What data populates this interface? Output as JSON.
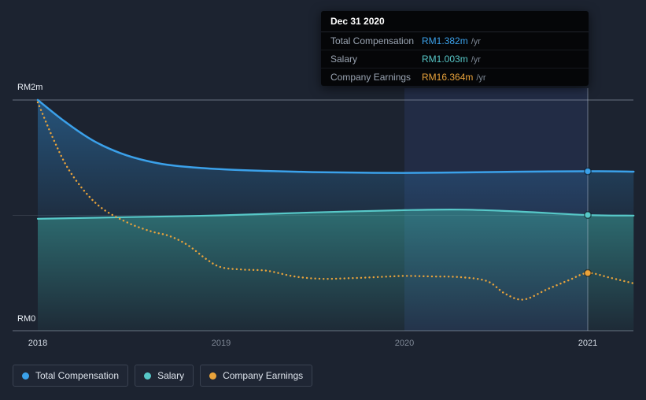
{
  "tooltip": {
    "date": "Dec 31 2020",
    "rows": [
      {
        "label": "Total Compensation",
        "value": "RM1.382m",
        "suffix": "/yr",
        "color": "#3ba1ea"
      },
      {
        "label": "Salary",
        "value": "RM1.003m",
        "suffix": "/yr",
        "color": "#57c8c8"
      },
      {
        "label": "Company Earnings",
        "value": "RM16.364m",
        "suffix": "/yr",
        "color": "#e9a33b"
      }
    ]
  },
  "axis": {
    "y_top_label": "RM2m",
    "y_bottom_label": "RM0",
    "x_labels": [
      "2018",
      "2019",
      "2020",
      "2021"
    ]
  },
  "legend": [
    {
      "label": "Total Compensation",
      "color": "#3ba1ea"
    },
    {
      "label": "Salary",
      "color": "#57c8c8"
    },
    {
      "label": "Company Earnings",
      "color": "#e9a33b"
    }
  ],
  "chart_data": {
    "type": "line",
    "x_ticks": [
      2018,
      2019,
      2020,
      2021
    ],
    "x_range": [
      2018,
      2021.3
    ],
    "y_axis": {
      "unit": "RM millions per year",
      "min": 0,
      "max": 2,
      "labeled_ticks": {
        "RM2m": 2,
        "RM0": 0
      }
    },
    "gridline_values": [
      2,
      1,
      0
    ],
    "grid": true,
    "legend_position": "bottom-left",
    "highlight_x_range": [
      2020,
      2021
    ],
    "marker_x": 2021,
    "selected_point": {
      "date": "Dec 31 2020",
      "total_compensation": "RM1.382m /yr",
      "salary": "RM1.003m /yr",
      "company_earnings": "RM16.364m /yr"
    },
    "series": [
      {
        "name": "Total Compensation",
        "color": "#3ba1ea",
        "style": "solid",
        "points": [
          [
            2018,
            2.0
          ],
          [
            2018.15,
            1.81
          ],
          [
            2018.3,
            1.65
          ],
          [
            2018.45,
            1.54
          ],
          [
            2018.6,
            1.47
          ],
          [
            2018.75,
            1.43
          ],
          [
            2019,
            1.4
          ],
          [
            2019.25,
            1.385
          ],
          [
            2019.5,
            1.375
          ],
          [
            2019.75,
            1.37
          ],
          [
            2020,
            1.368
          ],
          [
            2020.3,
            1.372
          ],
          [
            2020.6,
            1.378
          ],
          [
            2021,
            1.382
          ],
          [
            2021.25,
            1.379
          ]
        ]
      },
      {
        "name": "Salary",
        "color": "#57c8c8",
        "style": "solid",
        "points": [
          [
            2018,
            0.97
          ],
          [
            2018.5,
            0.985
          ],
          [
            2019,
            1.0
          ],
          [
            2019.5,
            1.025
          ],
          [
            2020,
            1.045
          ],
          [
            2020.3,
            1.05
          ],
          [
            2020.6,
            1.035
          ],
          [
            2021,
            1.003
          ],
          [
            2021.25,
            0.998
          ]
        ]
      },
      {
        "name": "Company Earnings",
        "color": "#e9a33b",
        "style": "dotted",
        "scale_note": "plotted on its own scale; value at Dec 31 2020 is RM16.364m /yr",
        "points": [
          [
            2018,
            1.98
          ],
          [
            2018.08,
            1.68
          ],
          [
            2018.16,
            1.42
          ],
          [
            2018.26,
            1.2
          ],
          [
            2018.36,
            1.05
          ],
          [
            2018.5,
            0.93
          ],
          [
            2018.62,
            0.86
          ],
          [
            2018.72,
            0.82
          ],
          [
            2018.82,
            0.74
          ],
          [
            2018.92,
            0.62
          ],
          [
            2019,
            0.55
          ],
          [
            2019.12,
            0.53
          ],
          [
            2019.25,
            0.52
          ],
          [
            2019.4,
            0.47
          ],
          [
            2019.55,
            0.45
          ],
          [
            2019.7,
            0.455
          ],
          [
            2019.85,
            0.465
          ],
          [
            2020,
            0.475
          ],
          [
            2020.15,
            0.47
          ],
          [
            2020.3,
            0.465
          ],
          [
            2020.45,
            0.43
          ],
          [
            2020.55,
            0.32
          ],
          [
            2020.65,
            0.27
          ],
          [
            2020.78,
            0.36
          ],
          [
            2020.9,
            0.44
          ],
          [
            2021,
            0.5
          ],
          [
            2021.12,
            0.46
          ],
          [
            2021.25,
            0.41
          ]
        ]
      }
    ]
  }
}
